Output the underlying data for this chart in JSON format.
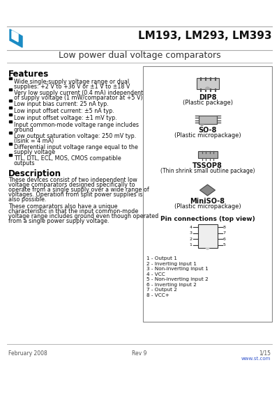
{
  "title_main": "LM193, LM293, LM393",
  "subtitle": "Low power dual voltage comparators",
  "logo_color": "#1a8bc4",
  "header_line_color": "#aaaaaa",
  "bg_color": "#ffffff",
  "text_color": "#000000",
  "features_title": "Features",
  "features": [
    "Wide single-supply voltage range or dual\nsupplies: +2 V to +36 V or ±1 V to ±18 V",
    "Very low supply current (0.4 mA) independent\nof supply voltage (1 mW/comparator at +5 V)",
    "Low input bias current: 25 nA typ.",
    "Low input offset current: ±5 nA typ.",
    "Low input offset voltage: ±1 mV typ.",
    "Input common-mode voltage range includes\nground",
    "Low output saturation voltage: 250 mV typ.\n(Isink = 4 mA)",
    "Differential input voltage range equal to the\nsupply voltage",
    "TTL, DTL, ECL, MOS, CMOS compatible\noutputs"
  ],
  "desc_title": "Description",
  "desc_text1": "These devices consist of two independent low voltage comparators designed specifically to operate from a single supply over a wide range of voltages. Operation from split power supplies is also possible.",
  "desc_text2": "These comparators also have a unique characteristic in that the input common-mode voltage range includes ground even though operated from a single power supply voltage.",
  "packages": [
    {
      "name": "DIP8",
      "desc": "(Plastic package)"
    },
    {
      "name": "SO-8",
      "desc": "(Plastic micropackage)"
    },
    {
      "name": "TSSOP8",
      "desc": "(Thin shrink small outline package)"
    },
    {
      "name": "MiniSO-8",
      "desc": "(Plastic micropackage)"
    }
  ],
  "pin_title": "Pin connections (top view)",
  "pin_labels": [
    "1 - Output 1",
    "2 - Inverting input 1",
    "3 - Non-inverting input 1",
    "4 - VCC",
    "5 - Non-inverting input 2",
    "6 - Inverting input 2",
    "7 - Output 2",
    "8 - VCC+"
  ],
  "footer_left": "February 2008",
  "footer_center": "Rev 9",
  "footer_right": "1/15",
  "footer_link": "www.st.com",
  "footer_link_color": "#3355cc",
  "box_border_color": "#888888"
}
